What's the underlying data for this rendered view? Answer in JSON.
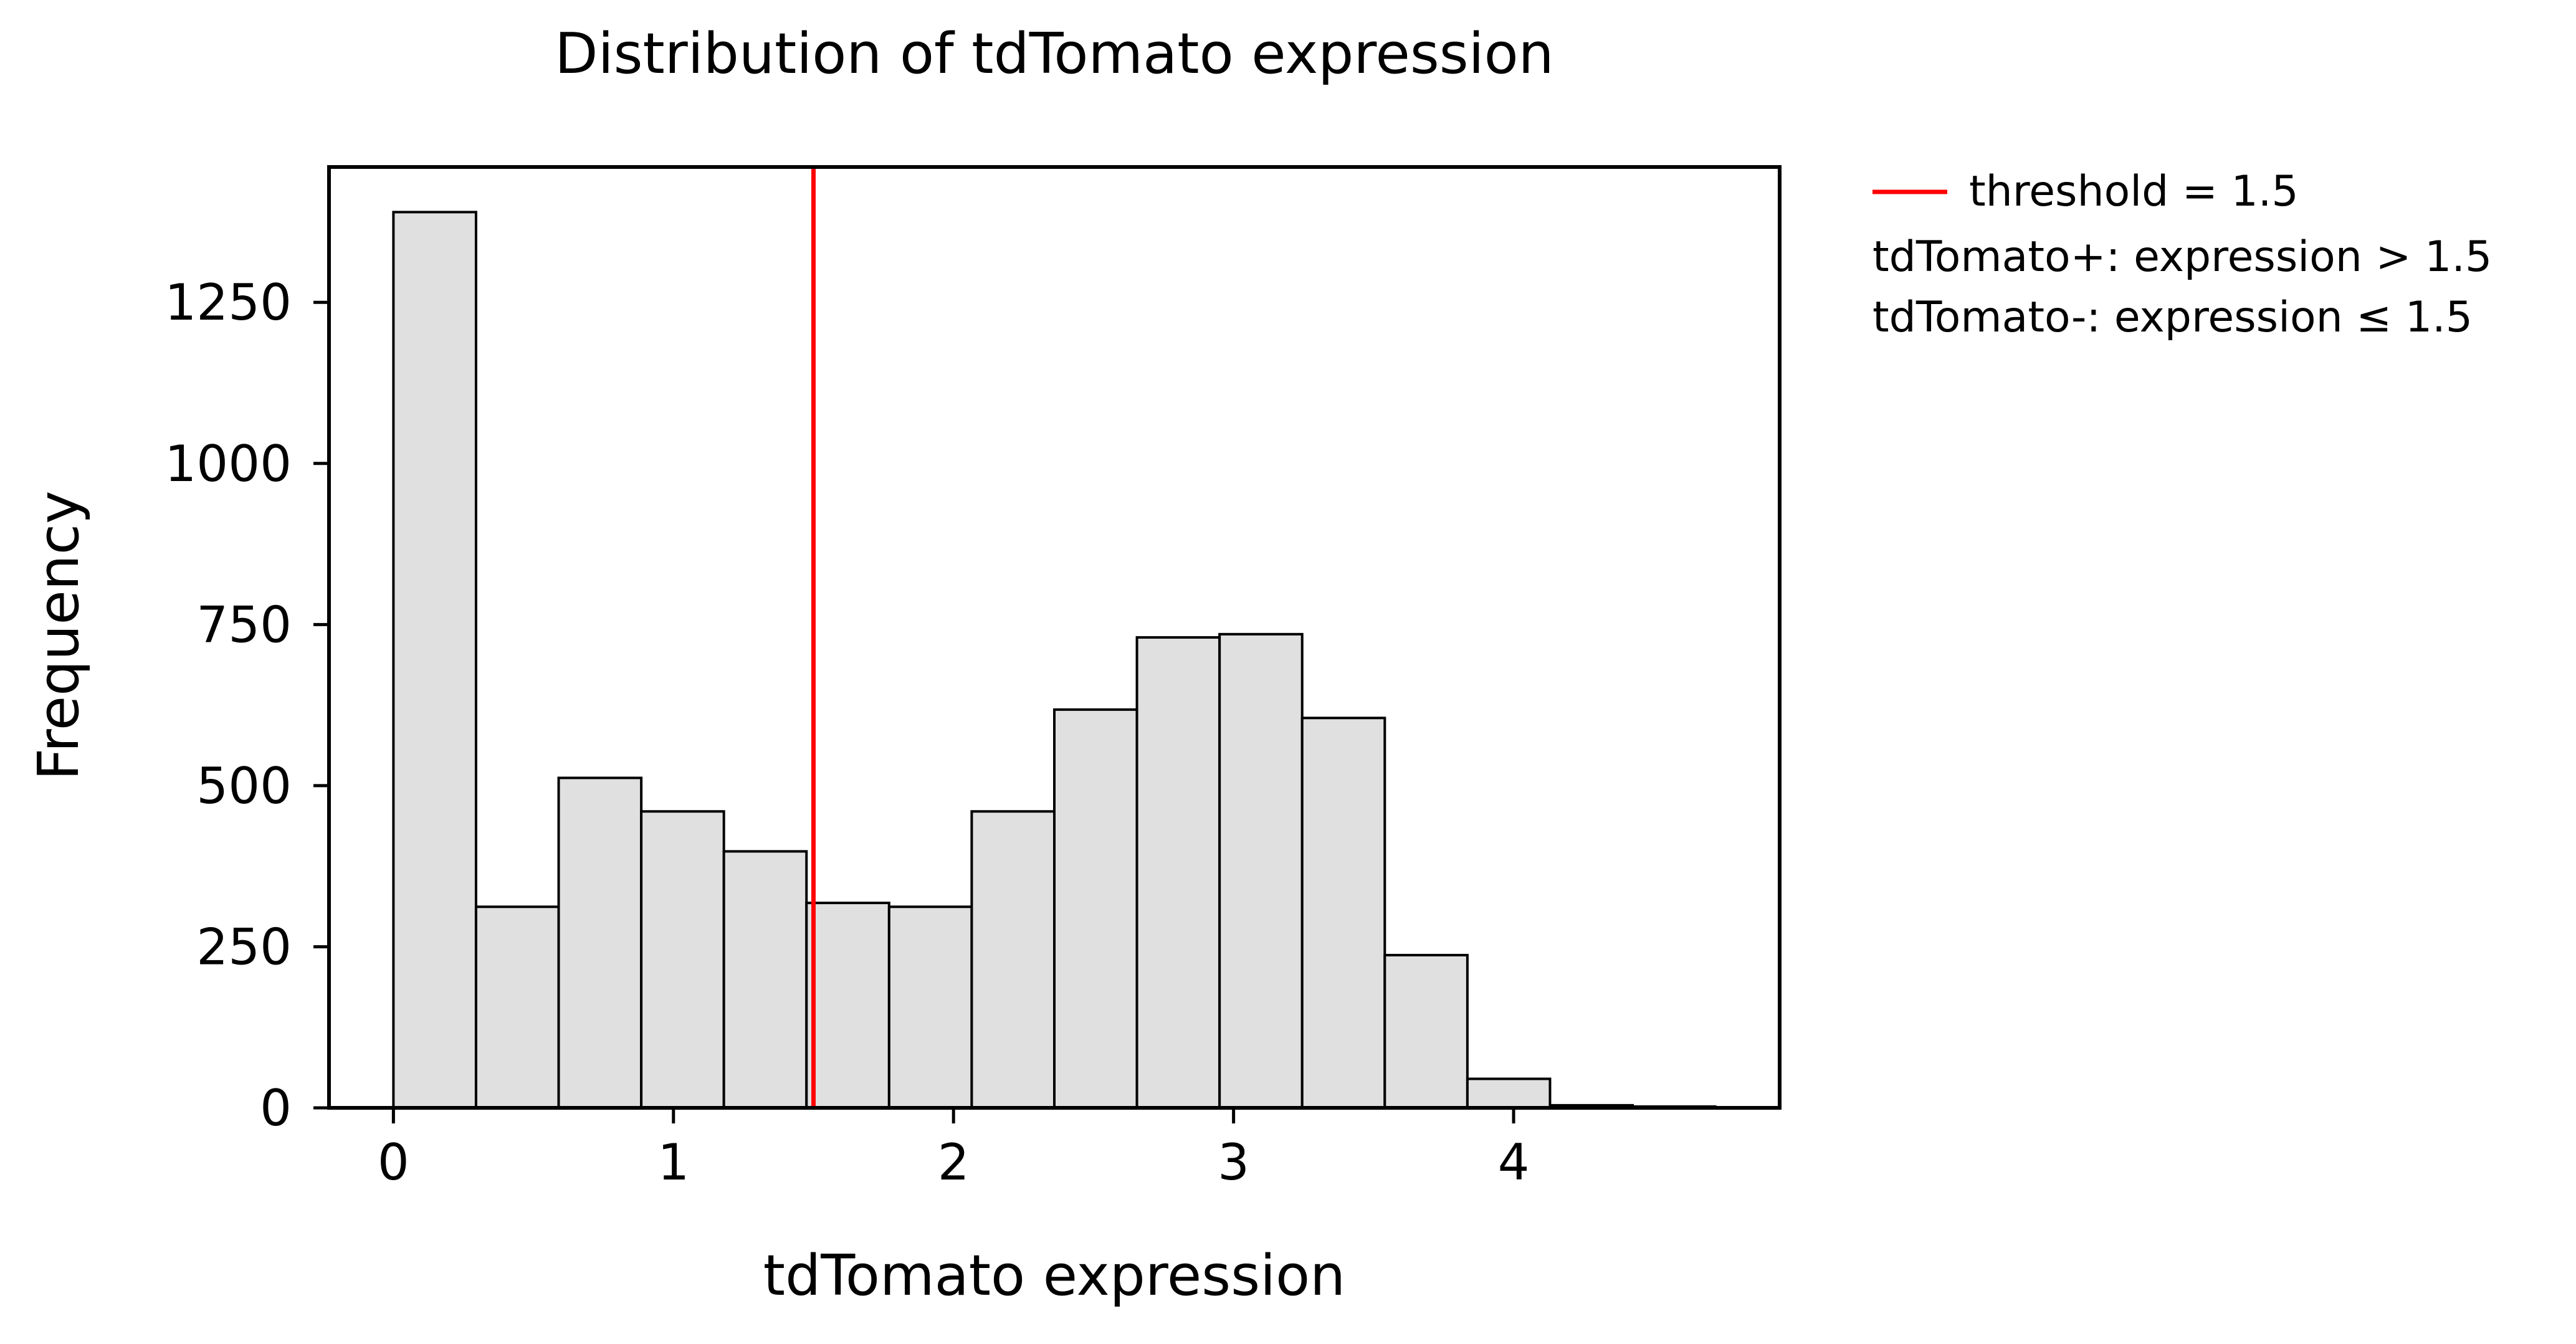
{
  "chart_data": {
    "type": "bar",
    "title": "Distribution of tdTomato expression",
    "xlabel": "tdTomato expression",
    "ylabel": "Frequency",
    "xlim": [
      -0.23,
      4.95
    ],
    "ylim": [
      0,
      1460
    ],
    "xticks": [
      0,
      1,
      2,
      3,
      4
    ],
    "yticks": [
      0,
      250,
      500,
      750,
      1000,
      1250
    ],
    "bin_edges": [
      0.0,
      0.295,
      0.59,
      0.885,
      1.18,
      1.475,
      1.77,
      2.065,
      2.36,
      2.655,
      2.95,
      3.245,
      3.54,
      3.835,
      4.13,
      4.425,
      4.72
    ],
    "values": [
      1390,
      312,
      512,
      460,
      398,
      318,
      312,
      460,
      618,
      730,
      735,
      605,
      237,
      45,
      4,
      2
    ],
    "bar_fill": "#e0e0e0",
    "bar_edge": "#000000",
    "threshold": 1.5,
    "threshold_color": "#ff0000",
    "grid": false,
    "legend_position": "outside-right",
    "legend": [
      {
        "label": "threshold = 1.5",
        "marker": "line"
      },
      {
        "label": "tdTomato+: expression > 1.5",
        "marker": "none"
      },
      {
        "label": "tdTomato-: expression ≤ 1.5",
        "marker": "none"
      }
    ]
  }
}
